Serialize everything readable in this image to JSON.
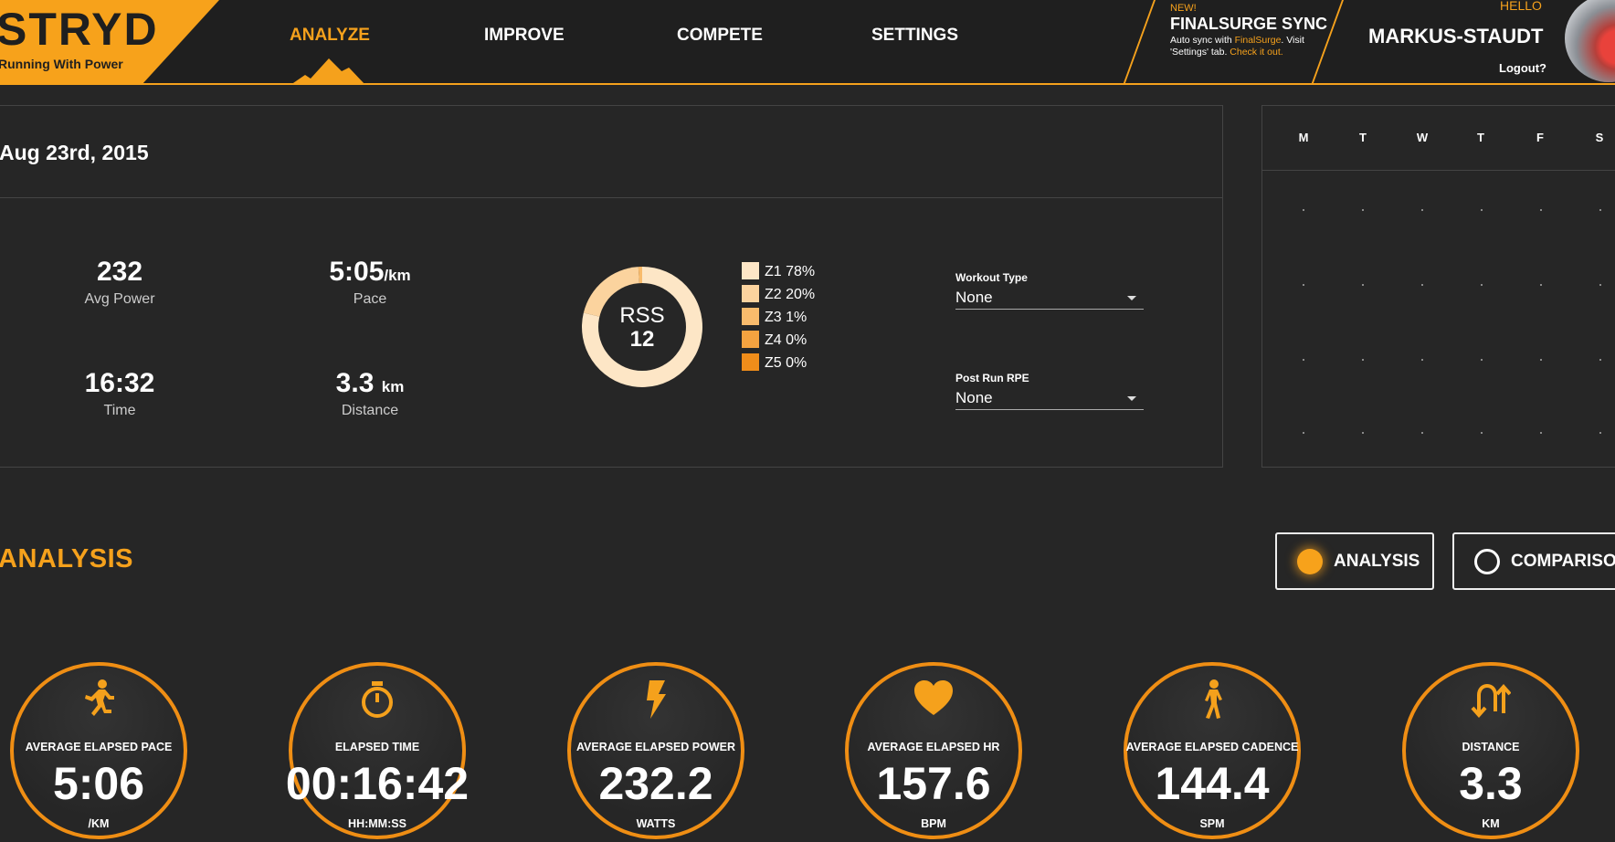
{
  "brand": {
    "name": "STRYD",
    "tagline": "Running With Power"
  },
  "nav": {
    "items": [
      {
        "label": "ANALYZE",
        "active": true
      },
      {
        "label": "IMPROVE",
        "active": false
      },
      {
        "label": "COMPETE",
        "active": false
      },
      {
        "label": "SETTINGS",
        "active": false
      }
    ]
  },
  "sync": {
    "badge": "NEW!",
    "title": "FINALSURGE SYNC",
    "desc_pre": "Auto sync with ",
    "desc_link": "FinalSurge",
    "desc_mid": ". Visit 'Settings' tab. ",
    "desc_cta": "Check it out."
  },
  "user": {
    "hello": "HELLO",
    "name": "MARKUS-STAUDT",
    "logout": "Logout?"
  },
  "summary": {
    "date": "Aug 23rd, 2015",
    "avg_power": {
      "value": "232",
      "label": "Avg Power"
    },
    "pace": {
      "value": "5:05",
      "unit": "/km",
      "label": "Pace"
    },
    "time": {
      "value": "16:32",
      "label": "Time"
    },
    "distance": {
      "value": "3.3",
      "unit": "km",
      "label": "Distance"
    },
    "rss": {
      "label": "RSS",
      "value": "12"
    },
    "zones": [
      {
        "label": "Z1 78%",
        "pct": 78,
        "color": "#fde6c6"
      },
      {
        "label": "Z2 20%",
        "pct": 20,
        "color": "#fbd39e"
      },
      {
        "label": "Z3 1%",
        "pct": 1,
        "color": "#f8bb6c"
      },
      {
        "label": "Z4 0%",
        "pct": 0,
        "color": "#f5a340"
      },
      {
        "label": "Z5 0%",
        "pct": 0,
        "color": "#f08d1a"
      }
    ],
    "workout_type": {
      "label": "Workout Type",
      "value": "None"
    },
    "post_run_rpe": {
      "label": "Post Run RPE",
      "value": "None"
    }
  },
  "calendar": {
    "days": [
      "M",
      "T",
      "W",
      "T",
      "F",
      "S"
    ]
  },
  "analysis": {
    "title": "ANALYSIS",
    "modes": [
      {
        "label": "ANALYSIS",
        "selected": true
      },
      {
        "label": "COMPARISON",
        "selected": false
      }
    ],
    "metrics": [
      {
        "icon": "runner-icon",
        "title": "AVERAGE ELAPSED PACE",
        "value": "5:06",
        "unit": "/KM"
      },
      {
        "icon": "stopwatch-icon",
        "title": "ELAPSED TIME",
        "value": "00:16:42",
        "unit": "HH:MM:SS"
      },
      {
        "icon": "lightning-icon",
        "title": "AVERAGE ELAPSED POWER",
        "value": "232.2",
        "unit": "WATTS"
      },
      {
        "icon": "heart-icon",
        "title": "AVERAGE ELAPSED HR",
        "value": "157.6",
        "unit": "BPM"
      },
      {
        "icon": "walker-icon",
        "title": "AVERAGE ELAPSED CADENCE",
        "value": "144.4",
        "unit": "SPM"
      },
      {
        "icon": "u-turn-icon",
        "title": "DISTANCE",
        "value": "3.3",
        "unit": "KM"
      }
    ]
  },
  "colors": {
    "accent": "#f5a11c",
    "background": "#262626",
    "header": "#1f1f1f"
  }
}
